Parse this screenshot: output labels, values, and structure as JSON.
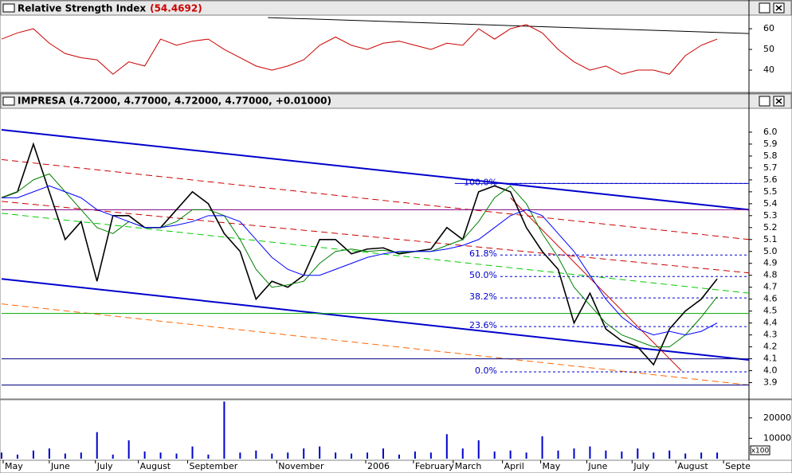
{
  "chart_data": [
    {
      "type": "line",
      "title": "Relative Strength Index",
      "title_value": "(54.4692)",
      "xlim": [
        0,
        94
      ],
      "ylim": [
        30.4,
        66.2
      ],
      "yticks": [
        40,
        50,
        60
      ],
      "x": [
        0,
        2,
        4,
        6,
        8,
        10,
        12,
        14,
        16,
        18,
        20,
        22,
        24,
        26,
        28,
        30,
        32,
        34,
        36,
        38,
        40,
        42,
        44,
        46,
        48,
        50,
        52,
        54,
        56,
        58,
        60,
        62,
        64,
        66,
        68,
        70,
        72,
        74,
        76,
        78,
        80,
        82,
        84,
        86,
        88,
        90
      ],
      "series": [
        {
          "name": "RSI",
          "color": "#cc0000",
          "values": [
            55,
            58,
            60,
            53,
            48,
            46,
            45,
            38,
            44,
            42,
            55,
            52,
            54,
            55,
            50,
            46,
            42,
            40,
            42,
            45,
            52,
            56,
            52,
            50,
            53,
            54,
            52,
            50,
            53,
            52,
            60,
            55,
            60,
            62,
            58,
            50,
            44,
            40,
            42,
            38,
            40,
            40,
            38,
            47,
            52,
            55
          ]
        }
      ],
      "lines": [
        {
          "color": "#000000",
          "dash": false,
          "x": [
            33.5,
            94
          ],
          "y": [
            65.4,
            57.7
          ]
        }
      ]
    },
    {
      "type": "line",
      "title": "IMPRESA (4.72000, 4.77000, 4.72000, 4.77000, +0.01000)",
      "xlim": [
        0,
        94
      ],
      "ylim": [
        3.77,
        6.2
      ],
      "yticks": [
        3.9,
        {
          "value": 4,
          "label": "4.0"
        },
        4.1,
        4.2,
        4.3,
        4.4,
        4.5,
        4.6,
        4.7,
        4.8,
        4.9,
        {
          "value": 5,
          "label": "5.0"
        },
        5.1,
        5.2,
        5.3,
        5.4,
        5.5,
        5.6,
        5.7,
        5.8,
        5.9,
        {
          "value": 6,
          "label": "6.0"
        }
      ],
      "xticks": [
        {
          "value": 0.2,
          "label": "May"
        },
        {
          "value": 6,
          "label": "June"
        },
        {
          "value": 11.8,
          "label": "July"
        },
        {
          "value": 17.2,
          "label": "August"
        },
        {
          "value": 23.4,
          "label": "September"
        },
        {
          "value": 34.6,
          "label": "November"
        },
        {
          "value": 45.8,
          "label": "2006"
        },
        {
          "value": 51.8,
          "label": "February"
        },
        {
          "value": 56.8,
          "label": "March"
        },
        {
          "value": 63,
          "label": "April"
        },
        {
          "value": 67.8,
          "label": "May"
        },
        {
          "value": 73.6,
          "label": "June"
        },
        {
          "value": 79.3,
          "label": "July"
        },
        {
          "value": 84.8,
          "label": "August"
        },
        {
          "value": 90.8,
          "label": "Septe"
        }
      ],
      "x": [
        0,
        2,
        4,
        6,
        8,
        10,
        12,
        14,
        16,
        18,
        20,
        22,
        24,
        26,
        28,
        30,
        32,
        34,
        36,
        38,
        40,
        42,
        44,
        46,
        48,
        50,
        52,
        54,
        56,
        58,
        60,
        62,
        64,
        66,
        68,
        70,
        72,
        74,
        76,
        78,
        80,
        82,
        84,
        86,
        88,
        90
      ],
      "series": [
        {
          "name": "IMPRESA",
          "color": "#000000",
          "values": [
            5.45,
            5.5,
            5.9,
            5.5,
            5.1,
            5.25,
            4.75,
            5.3,
            5.3,
            5.2,
            5.2,
            5.35,
            5.5,
            5.4,
            5.15,
            5.0,
            4.6,
            4.75,
            4.7,
            4.8,
            5.1,
            5.1,
            4.98,
            5.02,
            5.03,
            4.98,
            5.0,
            5.02,
            5.2,
            5.1,
            5.5,
            5.55,
            5.5,
            5.2,
            5.0,
            4.85,
            4.4,
            4.65,
            4.35,
            4.25,
            4.2,
            4.05,
            4.35,
            4.5,
            4.6,
            4.77
          ]
        },
        {
          "name": "MA short",
          "color": "#008000",
          "values": [
            5.45,
            5.5,
            5.6,
            5.65,
            5.5,
            5.35,
            5.2,
            5.15,
            5.25,
            5.2,
            5.2,
            5.25,
            5.35,
            5.35,
            5.3,
            5.1,
            4.85,
            4.7,
            4.72,
            4.75,
            4.9,
            5.0,
            5.02,
            5.0,
            5.01,
            4.99,
            5.0,
            5.0,
            5.05,
            5.1,
            5.25,
            5.45,
            5.55,
            5.4,
            5.15,
            4.95,
            4.7,
            4.55,
            4.4,
            4.3,
            4.25,
            4.2,
            4.2,
            4.3,
            4.45,
            4.62
          ]
        },
        {
          "name": "MA long",
          "color": "#0000ff",
          "values": [
            5.45,
            5.45,
            5.5,
            5.55,
            5.5,
            5.45,
            5.35,
            5.3,
            5.25,
            5.2,
            5.2,
            5.22,
            5.25,
            5.3,
            5.3,
            5.25,
            5.1,
            4.95,
            4.85,
            4.8,
            4.8,
            4.85,
            4.9,
            4.95,
            4.98,
            5.0,
            5.0,
            5.0,
            5.02,
            5.05,
            5.1,
            5.2,
            5.3,
            5.35,
            5.3,
            5.15,
            5.0,
            4.8,
            4.6,
            4.45,
            4.35,
            4.3,
            4.33,
            4.3,
            4.33,
            4.4
          ]
        }
      ],
      "lines": [
        {
          "color": "#0000cc",
          "dash": false,
          "x": [
            0,
            94
          ],
          "y": [
            6.02,
            5.35
          ]
        },
        {
          "color": "#0000cc",
          "dash": false,
          "x": [
            0,
            94
          ],
          "y": [
            4.77,
            4.09
          ]
        },
        {
          "color": "#cc0000",
          "dash": true,
          "x": [
            0,
            94
          ],
          "y": [
            5.77,
            5.1
          ]
        },
        {
          "color": "#cc0000",
          "dash": true,
          "x": [
            0,
            94
          ],
          "y": [
            5.42,
            4.82
          ]
        },
        {
          "color": "#00cc00",
          "dash": true,
          "x": [
            0,
            94
          ],
          "y": [
            5.32,
            4.65
          ]
        },
        {
          "color": "#ff6600",
          "dash": true,
          "x": [
            0,
            94
          ],
          "y": [
            4.56,
            3.88
          ]
        },
        {
          "color": "#800080",
          "dash": false,
          "x": [
            0,
            94
          ],
          "y": [
            5.35,
            5.35
          ]
        },
        {
          "color": "#00aa00",
          "dash": false,
          "x": [
            0,
            94
          ],
          "y": [
            4.48,
            4.48
          ]
        },
        {
          "color": "#000080",
          "dash": false,
          "x": [
            0,
            94
          ],
          "y": [
            4.1,
            4.1
          ]
        },
        {
          "color": "#000080",
          "dash": false,
          "x": [
            0,
            94
          ],
          "y": [
            3.88,
            3.88
          ]
        },
        {
          "color": "#0000cc",
          "dash": false,
          "x": [
            57,
            94
          ],
          "y": [
            5.57,
            5.57
          ]
        },
        {
          "color": "#cc0000",
          "dash": false,
          "x": [
            64,
            85.5
          ],
          "y": [
            5.45,
            4.0
          ]
        }
      ],
      "fib_levels": [
        {
          "label": "100.0%",
          "value": 5.57
        },
        {
          "label": "61.8%",
          "value": 4.97
        },
        {
          "label": "50.0%",
          "value": 4.79
        },
        {
          "label": "38.2%",
          "value": 4.61
        },
        {
          "label": "23.6%",
          "value": 4.37
        },
        {
          "label": "0.0%",
          "value": 3.99
        }
      ]
    },
    {
      "type": "bar",
      "unit_label": "x100",
      "xlim": [
        0,
        94
      ],
      "ylim": [
        0,
        28500
      ],
      "yticks": [
        10000,
        20000
      ],
      "x": [
        0,
        2,
        4,
        6,
        8,
        10,
        12,
        14,
        16,
        18,
        20,
        22,
        24,
        26,
        28,
        30,
        32,
        34,
        36,
        38,
        40,
        42,
        44,
        46,
        48,
        50,
        52,
        54,
        56,
        58,
        60,
        62,
        64,
        66,
        68,
        70,
        72,
        74,
        76,
        78,
        80,
        82,
        84,
        86,
        88,
        90
      ],
      "series": [
        {
          "name": "Volume",
          "color": "#0000cc",
          "values": [
            3000,
            2000,
            4000,
            5000,
            2500,
            3000,
            13000,
            2000,
            9000,
            3500,
            3000,
            2500,
            6000,
            2000,
            28000,
            3000,
            4000,
            2500,
            3000,
            5000,
            6000,
            3000,
            2500,
            3000,
            5000,
            2000,
            3500,
            3000,
            12000,
            5000,
            9000,
            3500,
            4000,
            3000,
            11000,
            4000,
            5000,
            6000,
            4000,
            3500,
            5000,
            3000,
            4000,
            2500,
            3000,
            3000
          ]
        }
      ]
    }
  ]
}
